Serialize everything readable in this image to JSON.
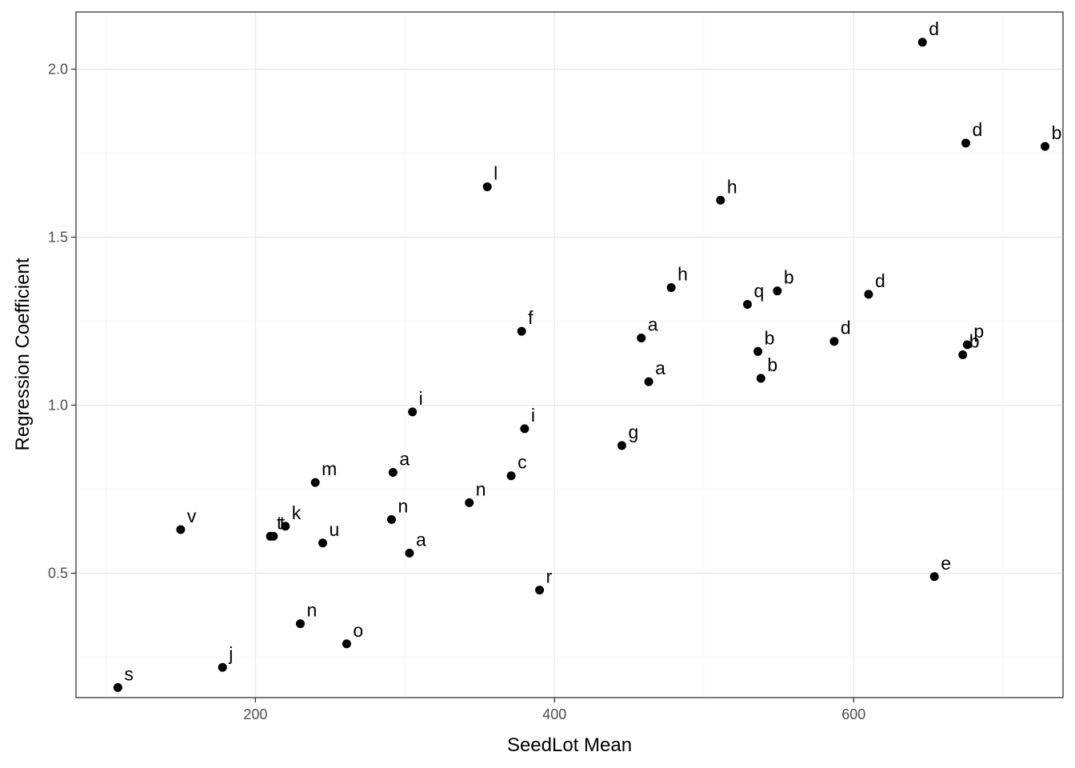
{
  "chart_data": {
    "type": "scatter",
    "title": "",
    "xlabel": "SeedLot Mean",
    "ylabel": "Regression Coefficient",
    "xlim": [
      80,
      740
    ],
    "ylim": [
      0.13,
      2.17
    ],
    "x_ticks": [
      200,
      400,
      600
    ],
    "y_ticks": [
      0.5,
      1.0,
      1.5,
      2.0
    ],
    "x_tick_labels": [
      "200",
      "400",
      "600"
    ],
    "y_tick_labels": [
      "0.5",
      "1.0",
      "1.5",
      "2.0"
    ],
    "grid": true,
    "legend": "none",
    "point_color": "#000000",
    "points": [
      {
        "x": 646,
        "y": 2.08,
        "label": "d"
      },
      {
        "x": 675,
        "y": 1.78,
        "label": "d"
      },
      {
        "x": 728,
        "y": 1.77,
        "label": "b"
      },
      {
        "x": 355,
        "y": 1.65,
        "label": "l"
      },
      {
        "x": 511,
        "y": 1.61,
        "label": "h"
      },
      {
        "x": 478,
        "y": 1.35,
        "label": "h"
      },
      {
        "x": 549,
        "y": 1.34,
        "label": "b"
      },
      {
        "x": 610,
        "y": 1.33,
        "label": "d"
      },
      {
        "x": 529,
        "y": 1.3,
        "label": "q"
      },
      {
        "x": 378,
        "y": 1.22,
        "label": "f"
      },
      {
        "x": 458,
        "y": 1.2,
        "label": "a"
      },
      {
        "x": 587,
        "y": 1.19,
        "label": "d"
      },
      {
        "x": 676,
        "y": 1.18,
        "label": "p"
      },
      {
        "x": 673,
        "y": 1.15,
        "label": "b"
      },
      {
        "x": 536,
        "y": 1.16,
        "label": "b"
      },
      {
        "x": 538,
        "y": 1.08,
        "label": "b"
      },
      {
        "x": 463,
        "y": 1.07,
        "label": "a"
      },
      {
        "x": 305,
        "y": 0.98,
        "label": "i"
      },
      {
        "x": 380,
        "y": 0.93,
        "label": "i"
      },
      {
        "x": 445,
        "y": 0.88,
        "label": "g"
      },
      {
        "x": 292,
        "y": 0.8,
        "label": "a"
      },
      {
        "x": 371,
        "y": 0.79,
        "label": "c"
      },
      {
        "x": 240,
        "y": 0.77,
        "label": "m"
      },
      {
        "x": 343,
        "y": 0.71,
        "label": "n"
      },
      {
        "x": 291,
        "y": 0.66,
        "label": "n"
      },
      {
        "x": 220,
        "y": 0.64,
        "label": "k"
      },
      {
        "x": 150,
        "y": 0.63,
        "label": "v"
      },
      {
        "x": 210,
        "y": 0.61,
        "label": "t"
      },
      {
        "x": 212,
        "y": 0.61,
        "label": "t"
      },
      {
        "x": 245,
        "y": 0.59,
        "label": "u"
      },
      {
        "x": 303,
        "y": 0.56,
        "label": "a"
      },
      {
        "x": 654,
        "y": 0.49,
        "label": "e"
      },
      {
        "x": 390,
        "y": 0.45,
        "label": "r"
      },
      {
        "x": 230,
        "y": 0.35,
        "label": "n"
      },
      {
        "x": 261,
        "y": 0.29,
        "label": "o"
      },
      {
        "x": 178,
        "y": 0.22,
        "label": "j"
      },
      {
        "x": 108,
        "y": 0.16,
        "label": "s"
      }
    ]
  }
}
